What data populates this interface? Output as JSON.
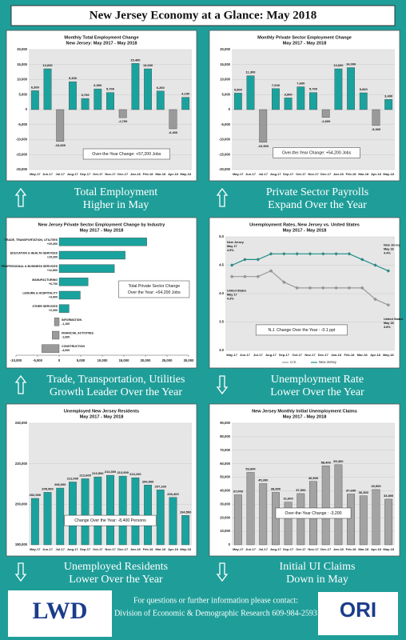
{
  "title": "New Jersey Economy at a Glance: May 2018",
  "captions": [
    [
      "Total Employment",
      "Higher in May"
    ],
    [
      "Private Sector Payrolls",
      "Expand Over the Year"
    ],
    [
      "Trade, Transportation, Utilities",
      "Growth Leader Over the Year"
    ],
    [
      "Unemployment Rate",
      "Lower Over the Year"
    ],
    [
      "Unemployed Residents",
      "Lower Over the Year"
    ],
    [
      "Initial UI Claims",
      "Down in May"
    ]
  ],
  "footer": {
    "lines": [
      "For questions or further information please contact:",
      "Division of Economic & Demographic Research 609-984-2593"
    ],
    "left_logo": "LWD",
    "right_logo": "ORI"
  },
  "chart_data": [
    {
      "type": "bar",
      "title": "Monthly Total Employment Change",
      "subtitle": "New Jersey: May 2017 - May 2018",
      "categories": [
        "May-17",
        "Jun-17",
        "Jul-17",
        "Aug-17",
        "Sep-17",
        "Oct-17",
        "Nov-17",
        "Dec-17",
        "Jan-18",
        "Feb-18",
        "Mar-18",
        "Apr-18",
        "May-18"
      ],
      "values": [
        6300,
        13600,
        -10600,
        9300,
        3700,
        6900,
        5700,
        -2700,
        15400,
        13600,
        6200,
        -6400,
        4100
      ],
      "value_labels": [
        "6,300",
        "13,600",
        "-10,600",
        "9,300",
        "3,700",
        "6,900",
        "5,700",
        "-2,700",
        "15,400",
        "13,600",
        "6,200",
        "-6,400",
        "4,100"
      ],
      "color": "#1aa39e",
      "negative_color": "#9a9a9a",
      "ylim": [
        -20000,
        20000
      ],
      "yticks": [
        {
          "value": -20000,
          "label": "-20,000"
        },
        {
          "value": -15000,
          "label": "-15,000"
        },
        {
          "value": -10000,
          "label": "-10,000"
        },
        {
          "value": -5000,
          "label": "-5,000"
        },
        0,
        {
          "value": 5000,
          "label": "5,000"
        },
        {
          "value": 10000,
          "label": "10,000"
        },
        {
          "value": 15000,
          "label": "15,000"
        },
        {
          "value": 20000,
          "label": "20,000"
        }
      ],
      "annotations": [
        "Over-the-Year Change: +57,200 Jobs"
      ]
    },
    {
      "type": "bar",
      "title": "Monthly Private Sector Employment Change",
      "subtitle": "May 2017 - May 2018",
      "categories": [
        "May-17",
        "Jun-17",
        "Jul-17",
        "Aug-17",
        "Sep-17",
        "Oct-17",
        "Nov-17",
        "Dec-17",
        "Jan-18",
        "Feb-18",
        "Mar-18",
        "Apr-18",
        "May-18"
      ],
      "values": [
        5500,
        11300,
        -10900,
        7000,
        3900,
        7600,
        5700,
        -2600,
        13600,
        14000,
        5600,
        -5300,
        3400
      ],
      "value_labels": [
        "5,500",
        "11,300",
        "-10,900",
        "7,000",
        "3,900",
        "7,600",
        "5,700",
        "-2,600",
        "13,600",
        "14,000",
        "5,600",
        "-5,300",
        "3,400"
      ],
      "color": "#1aa39e",
      "negative_color": "#9a9a9a",
      "ylim": [
        -20000,
        20000
      ],
      "yticks": [
        {
          "value": -20000,
          "label": "-20,000"
        },
        {
          "value": -15000,
          "label": "-15,000"
        },
        {
          "value": -10000,
          "label": "-10,000"
        },
        {
          "value": -5000,
          "label": "-5,000"
        },
        0,
        {
          "value": 5000,
          "label": "5,000"
        },
        {
          "value": 10000,
          "label": "10,000"
        },
        {
          "value": 15000,
          "label": "15,000"
        },
        {
          "value": 20000,
          "label": "20,000"
        }
      ],
      "annotations": [
        "Over-the-Year Change: +54,200 Jobs"
      ]
    },
    {
      "type": "bar",
      "orientation": "horizontal",
      "title": "New Jersey Private Sector Employment Change by Industry",
      "subtitle": "May 2017 - May 2018",
      "categories": [
        "TRADE, TRANSPORTATION, UTILITIES",
        "EDUCATION & HEALTH SERVICES",
        "PROFESSIONAL & BUSINESS SERVICES",
        "MANUFACTURING",
        "LEISURE & HOSPITALITY",
        "OTHER SERVICES",
        "INFORMATION",
        "FINANCIAL ACTIVITIES",
        "CONSTRUCTION"
      ],
      "values": [
        20300,
        15300,
        12800,
        6700,
        4900,
        2300,
        -1100,
        -1600,
        -4000
      ],
      "value_labels": [
        "+20,300",
        "+15,300",
        "+12,800",
        "+6,700",
        "+4,900",
        "+2,300",
        "-1,100",
        "-1,600",
        "-4,000"
      ],
      "color": "#1aa39e",
      "negative_color": "#9a9a9a",
      "xlim": [
        -10000,
        30000
      ],
      "xticks": [
        {
          "value": -10000,
          "label": "-10,000"
        },
        {
          "value": -5000,
          "label": "-5,000"
        },
        0,
        {
          "value": 5000,
          "label": "5,000"
        },
        {
          "value": 10000,
          "label": "10,000"
        },
        {
          "value": 15000,
          "label": "15,000"
        },
        {
          "value": 20000,
          "label": "20,000"
        },
        {
          "value": 25000,
          "label": "25,000"
        },
        {
          "value": 30000,
          "label": "30,000"
        }
      ],
      "annotations": [
        "Total Private Sector Change",
        "Over the Year: +54,200 Jobs"
      ]
    },
    {
      "type": "line",
      "title": "Unemployment Rates, New Jersey vs. United States",
      "subtitle": "May 2017 - May 2018",
      "categories": [
        "May-17",
        "Jun-17",
        "Jul-17",
        "Aug-17",
        "Sep-17",
        "Oct-17",
        "Nov-17",
        "Dec-17",
        "Jan-18",
        "Feb-18",
        "Mar-18",
        "Apr-18",
        "May-18"
      ],
      "series": [
        {
          "name": "U.S.",
          "color": "#9a9a9a",
          "values": [
            4.3,
            4.3,
            4.3,
            4.4,
            4.2,
            4.1,
            4.1,
            4.1,
            4.1,
            4.1,
            4.1,
            3.9,
            3.8
          ]
        },
        {
          "name": "New Jersey",
          "color": "#1a8f8a",
          "values": [
            4.5,
            4.6,
            4.6,
            4.7,
            4.7,
            4.7,
            4.7,
            4.7,
            4.7,
            4.7,
            4.6,
            4.5,
            4.4
          ]
        }
      ],
      "ylim": [
        3,
        5
      ],
      "yticks": [
        {
          "value": 3,
          "label": "3.0"
        },
        3.5,
        {
          "value": 4,
          "label": "4.0"
        },
        4.5,
        {
          "value": 5,
          "label": "5.0"
        }
      ],
      "notes": [
        [
          "New Jersey",
          "May 17",
          "4.5%"
        ],
        [
          "United States",
          "May 17",
          "4.3%"
        ],
        [
          "New Jersey",
          "May 18",
          "4.4%"
        ],
        [
          "United States",
          "May 18",
          "3.8%"
        ]
      ],
      "annotations": [
        "N.J. Change Over the Year : -0.1 ppt"
      ]
    },
    {
      "type": "bar",
      "title": "Unemployed New Jersey Residents",
      "subtitle": "May 2017 - May 2018",
      "categories": [
        "May-17",
        "Jun-17",
        "Jul-17",
        "Aug-17",
        "Sep-17",
        "Oct-17",
        "Nov-17",
        "Dec-17",
        "Jan-18",
        "Feb-18",
        "Mar-18",
        "Apr-18",
        "May-18"
      ],
      "values": [
        202900,
        205900,
        208000,
        211000,
        212600,
        213500,
        214300,
        213900,
        213100,
        209500,
        207100,
        203400,
        194500
      ],
      "value_labels": [
        "202,900",
        "205,900",
        "208,000",
        "211,000",
        "212,600",
        "213,500",
        "214,300",
        "213,900",
        "213,100",
        "209,500",
        "207,100",
        "203,400",
        "194,500"
      ],
      "color": "#1aa39e",
      "negative_color": "#9a9a9a",
      "ylim": [
        180000,
        240000
      ],
      "yticks": [
        {
          "value": 180000,
          "label": "180,000"
        },
        {
          "value": 200000,
          "label": "200,000"
        },
        {
          "value": 220000,
          "label": "220,000"
        },
        {
          "value": 240000,
          "label": "240,000"
        }
      ],
      "annotations": [
        "Change Over the Year: -8,400 Persons"
      ]
    },
    {
      "type": "bar",
      "title": "New Jersey Monthly Initial Unemployment Claims",
      "subtitle": "May 2017 - May 2018",
      "categories": [
        "May-17",
        "Jun-17",
        "Jul-17",
        "Aug-17",
        "Sep-17",
        "Oct-17",
        "Nov-17",
        "Dec-17",
        "Jan-18",
        "Feb-18",
        "Mar-18",
        "Apr-18",
        "May-18"
      ],
      "values": [
        37000,
        53600,
        45300,
        38800,
        31600,
        37900,
        46900,
        58400,
        59300,
        37600,
        36300,
        40900,
        33800
      ],
      "value_labels": [
        "37,000",
        "53,600",
        "45,300",
        "38,800",
        "31,600",
        "37,900",
        "46,900",
        "58,400",
        "59,300",
        "37,600",
        "36,300",
        "40,900",
        "33,800"
      ],
      "color": "#a3a3a3",
      "negative_color": "#a3a3a3",
      "ylim": [
        0,
        90000
      ],
      "yticks": [
        0,
        {
          "value": 10000,
          "label": "10,000"
        },
        {
          "value": 20000,
          "label": "20,000"
        },
        {
          "value": 30000,
          "label": "30,000"
        },
        {
          "value": 40000,
          "label": "40,000"
        },
        {
          "value": 50000,
          "label": "50,000"
        },
        {
          "value": 60000,
          "label": "60,000"
        },
        {
          "value": 70000,
          "label": "70,000"
        },
        {
          "value": 80000,
          "label": "80,000"
        },
        {
          "value": 90000,
          "label": "90,000"
        }
      ],
      "annotations": [
        "Over-the-Year Change : -3,200"
      ]
    }
  ]
}
